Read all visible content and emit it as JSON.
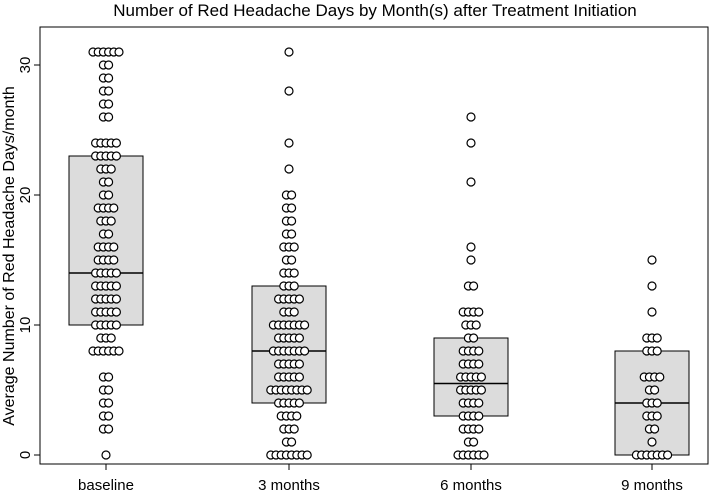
{
  "chart_data": {
    "type": "box",
    "title": "Number of Red Headache Days by Month(s) after Treatment Initiation",
    "xlabel": "",
    "ylabel": "Average Number of Red Headache Days/month",
    "ylim": [
      0,
      31.5
    ],
    "yticks": [
      0,
      10,
      20,
      30
    ],
    "grid": false,
    "legend": "none",
    "colors": {
      "box_fill": "#dcdcdc",
      "box_stroke": "#000000",
      "point_fill": "#ffffff",
      "point_stroke": "#000000"
    },
    "categories": [
      "baseline",
      "3 months",
      "6 months",
      "9 months"
    ],
    "boxes": [
      {
        "category": "baseline",
        "q1": 10,
        "median": 14,
        "q3": 23
      },
      {
        "category": "3 months",
        "q1": 4,
        "median": 8,
        "q3": 13
      },
      {
        "category": "6 months",
        "q1": 3,
        "median": 5.5,
        "q3": 9
      },
      {
        "category": "9 months",
        "q1": 0,
        "median": 4,
        "q3": 8
      }
    ],
    "points": [
      {
        "category": "baseline",
        "groups": [
          [
            0,
            1
          ],
          [
            2,
            2
          ],
          [
            3,
            2
          ],
          [
            4,
            2
          ],
          [
            5,
            2
          ],
          [
            6,
            2
          ],
          [
            8,
            6
          ],
          [
            9,
            3
          ],
          [
            10,
            5
          ],
          [
            11,
            5
          ],
          [
            12,
            5
          ],
          [
            13,
            5
          ],
          [
            14,
            5
          ],
          [
            15,
            4
          ],
          [
            16,
            4
          ],
          [
            17,
            2
          ],
          [
            18,
            3
          ],
          [
            19,
            4
          ],
          [
            20,
            2
          ],
          [
            21,
            2
          ],
          [
            22,
            3
          ],
          [
            23,
            5
          ],
          [
            24,
            5
          ],
          [
            26,
            2
          ],
          [
            27,
            2
          ],
          [
            28,
            2
          ],
          [
            29,
            2
          ],
          [
            30,
            2
          ],
          [
            31,
            6
          ]
        ]
      },
      {
        "category": "3 months",
        "groups": [
          [
            0,
            8
          ],
          [
            1,
            2
          ],
          [
            2,
            3
          ],
          [
            3,
            4
          ],
          [
            4,
            5
          ],
          [
            5,
            8
          ],
          [
            6,
            5
          ],
          [
            7,
            5
          ],
          [
            8,
            7
          ],
          [
            9,
            5
          ],
          [
            10,
            7
          ],
          [
            11,
            3
          ],
          [
            12,
            5
          ],
          [
            13,
            3
          ],
          [
            14,
            3
          ],
          [
            15,
            2
          ],
          [
            16,
            3
          ],
          [
            17,
            2
          ],
          [
            18,
            2
          ],
          [
            19,
            2
          ],
          [
            20,
            2
          ],
          [
            22,
            1
          ],
          [
            24,
            1
          ],
          [
            28,
            1
          ],
          [
            31,
            1
          ]
        ]
      },
      {
        "category": "6 months",
        "groups": [
          [
            0,
            6
          ],
          [
            1,
            2
          ],
          [
            2,
            4
          ],
          [
            3,
            4
          ],
          [
            4,
            4
          ],
          [
            5,
            5
          ],
          [
            6,
            5
          ],
          [
            7,
            4
          ],
          [
            8,
            4
          ],
          [
            9,
            2
          ],
          [
            10,
            3
          ],
          [
            11,
            4
          ],
          [
            13,
            2
          ],
          [
            15,
            1
          ],
          [
            16,
            1
          ],
          [
            21,
            1
          ],
          [
            24,
            1
          ],
          [
            26,
            1
          ]
        ]
      },
      {
        "category": "9 months",
        "groups": [
          [
            0,
            7
          ],
          [
            1,
            1
          ],
          [
            2,
            2
          ],
          [
            3,
            3
          ],
          [
            4,
            3
          ],
          [
            5,
            2
          ],
          [
            6,
            4
          ],
          [
            8,
            3
          ],
          [
            9,
            3
          ],
          [
            11,
            1
          ],
          [
            13,
            1
          ],
          [
            15,
            1
          ]
        ]
      }
    ]
  }
}
